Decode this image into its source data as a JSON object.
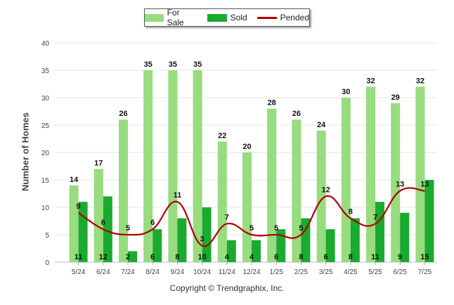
{
  "chart_data": {
    "type": "bar",
    "categories": [
      "5/24",
      "6/24",
      "7/24",
      "8/24",
      "9/24",
      "10/24",
      "11/24",
      "12/24",
      "1/25",
      "2/25",
      "3/25",
      "4/25",
      "5/25",
      "6/25",
      "7/25"
    ],
    "series": [
      {
        "name": "For Sale",
        "type": "bar",
        "color": "#97dc7f",
        "values": [
          14,
          17,
          26,
          35,
          35,
          35,
          22,
          20,
          28,
          26,
          24,
          30,
          32,
          29,
          32
        ]
      },
      {
        "name": "Sold",
        "type": "bar",
        "color": "#1aaa2f",
        "values": [
          11,
          12,
          2,
          6,
          8,
          10,
          4,
          4,
          6,
          8,
          6,
          8,
          11,
          9,
          15
        ]
      },
      {
        "name": "Pended",
        "type": "line",
        "color": "#b30000",
        "values": [
          9,
          6,
          5,
          6,
          11,
          3,
          7,
          5,
          5,
          5,
          12,
          8,
          7,
          13,
          13
        ]
      }
    ],
    "ylabel": "Number of Homes",
    "xlabel": "",
    "ylim": [
      0,
      40
    ],
    "yticks": [
      0,
      5,
      10,
      15,
      20,
      25,
      30,
      35,
      40
    ],
    "grid": true,
    "legend_position": "top-center"
  },
  "footer": "Copyright © Trendgraphix, Inc."
}
